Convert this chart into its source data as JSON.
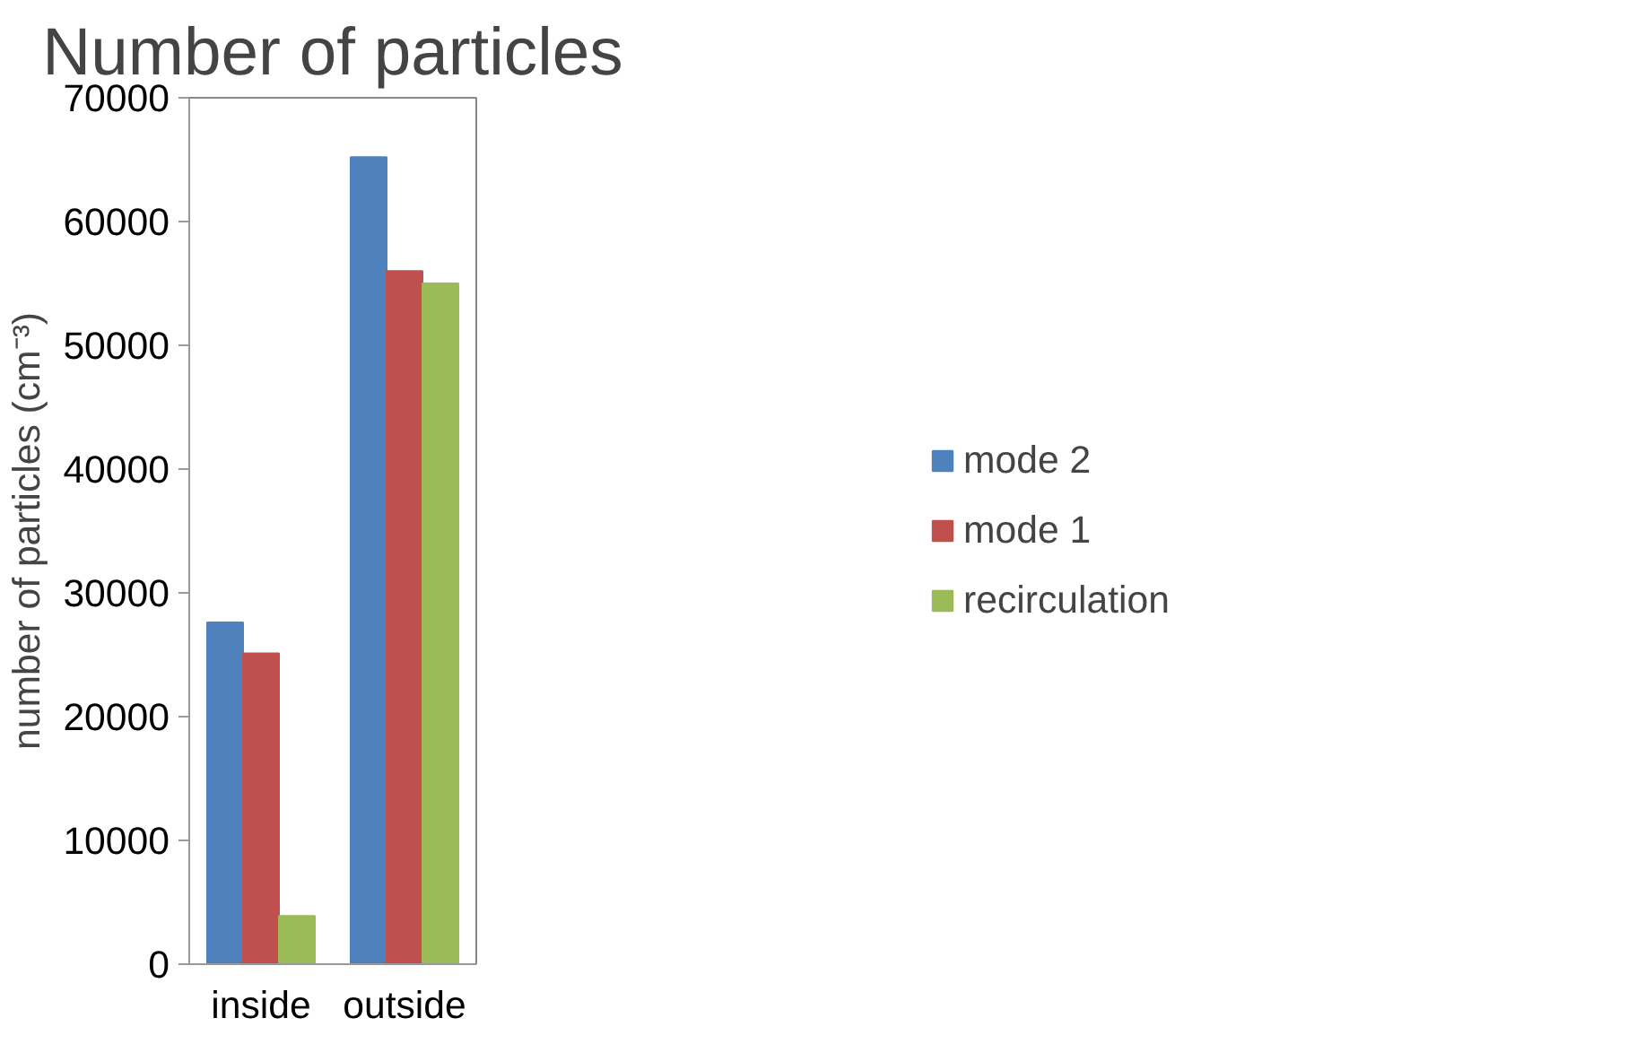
{
  "chart_data": {
    "type": "bar",
    "title": "Number of particles",
    "ylabel": "number of particles (cm⁻³)",
    "categories": [
      "inside",
      "outside"
    ],
    "series": [
      {
        "name": "mode 2",
        "color": "#4f81bd",
        "values": [
          27600,
          65200
        ]
      },
      {
        "name": "mode 1",
        "color": "#c0504d",
        "values": [
          25100,
          56000
        ]
      },
      {
        "name": "recirculation",
        "color": "#9bbb59",
        "values": [
          3900,
          55000
        ]
      }
    ],
    "ylim": [
      0,
      70000
    ],
    "yticks": [
      0,
      10000,
      20000,
      30000,
      40000,
      50000,
      60000,
      70000
    ],
    "grid": false,
    "legend": "right"
  }
}
